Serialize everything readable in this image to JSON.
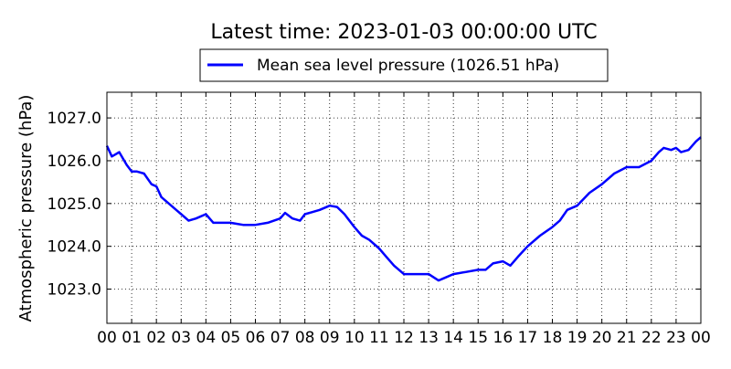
{
  "chart_data": {
    "type": "line",
    "title": "Latest time: 2023-01-03 00:00:00 UTC",
    "xlabel": "",
    "ylabel": "Atmospheric pressure (hPa)",
    "xlim": [
      0,
      24
    ],
    "ylim": [
      1022.2,
      1027.6
    ],
    "x_tick_labels": [
      "00",
      "01",
      "02",
      "03",
      "04",
      "05",
      "06",
      "07",
      "08",
      "09",
      "10",
      "11",
      "12",
      "13",
      "14",
      "15",
      "16",
      "17",
      "18",
      "19",
      "20",
      "21",
      "22",
      "23",
      "00"
    ],
    "y_ticks": [
      1023.0,
      1024.0,
      1025.0,
      1026.0,
      1027.0
    ],
    "y_tick_labels": [
      "1023.0",
      "1024.0",
      "1025.0",
      "1026.0",
      "1027.0"
    ],
    "grid": true,
    "legend": {
      "position": "top-center",
      "label": "Mean sea level pressure (1026.51 hPa)"
    },
    "series": [
      {
        "name": "Mean sea level pressure (1026.51 hPa)",
        "color": "#0000ff",
        "x": [
          0,
          0.2,
          0.5,
          0.8,
          1.0,
          1.2,
          1.5,
          1.8,
          2.0,
          2.2,
          2.5,
          2.8,
          3.0,
          3.3,
          3.6,
          4.0,
          4.3,
          4.6,
          5.0,
          5.5,
          6.0,
          6.5,
          7.0,
          7.2,
          7.5,
          7.8,
          8.0,
          8.3,
          8.6,
          9.0,
          9.3,
          9.6,
          10.0,
          10.3,
          10.6,
          11.0,
          11.3,
          11.6,
          12.0,
          12.5,
          13.0,
          13.4,
          13.6,
          14.0,
          14.5,
          15.0,
          15.3,
          15.6,
          16.0,
          16.3,
          16.6,
          17.0,
          17.5,
          18.0,
          18.3,
          18.6,
          19.0,
          19.5,
          20.0,
          20.5,
          21.0,
          21.5,
          22.0,
          22.3,
          22.5,
          22.8,
          23.0,
          23.2,
          23.5,
          23.8,
          24.0
        ],
        "y": [
          1026.35,
          1026.1,
          1026.2,
          1025.9,
          1025.75,
          1025.75,
          1025.7,
          1025.45,
          1025.4,
          1025.15,
          1025.0,
          1024.85,
          1024.75,
          1024.6,
          1024.65,
          1024.75,
          1024.55,
          1024.55,
          1024.55,
          1024.5,
          1024.5,
          1024.55,
          1024.65,
          1024.78,
          1024.65,
          1024.6,
          1024.75,
          1024.8,
          1024.85,
          1024.95,
          1024.92,
          1024.75,
          1024.45,
          1024.25,
          1024.15,
          1023.95,
          1023.75,
          1023.55,
          1023.35,
          1023.35,
          1023.35,
          1023.2,
          1023.25,
          1023.35,
          1023.4,
          1023.45,
          1023.45,
          1023.6,
          1023.65,
          1023.55,
          1023.75,
          1024.0,
          1024.25,
          1024.45,
          1024.6,
          1024.85,
          1024.95,
          1025.25,
          1025.45,
          1025.7,
          1025.85,
          1025.85,
          1026.0,
          1026.2,
          1026.3,
          1026.25,
          1026.3,
          1026.2,
          1026.25,
          1026.45,
          1026.55
        ]
      }
    ]
  }
}
